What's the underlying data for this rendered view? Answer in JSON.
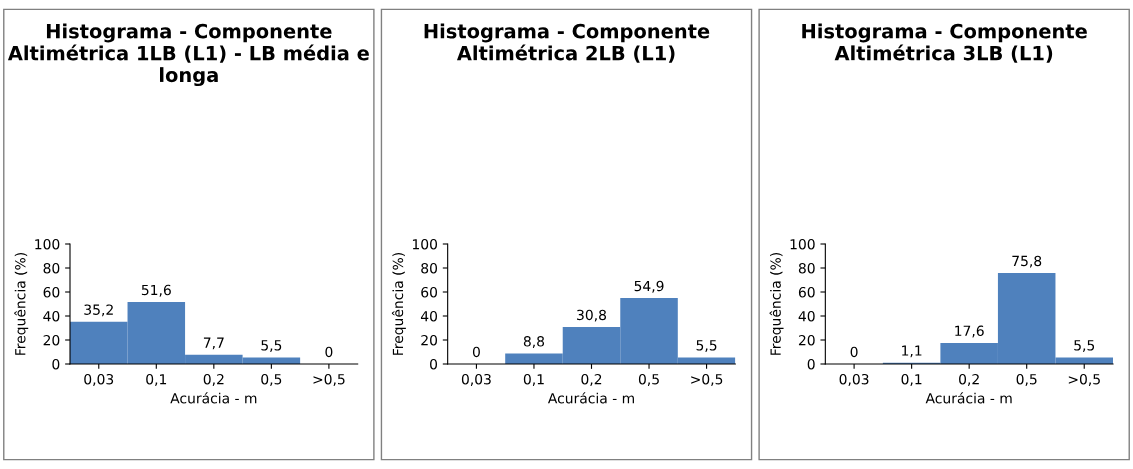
{
  "chart_data": [
    {
      "type": "bar",
      "title": "Histograma - Componente Altimétrica 1LB (L1) - LB média e longa",
      "xlabel": "Acurácia - m",
      "ylabel": "Frequência (%)",
      "categories": [
        "0,03",
        "0,1",
        "0,2",
        "0,5",
        ">0,5"
      ],
      "values": [
        35.2,
        51.6,
        7.7,
        5.5,
        0
      ],
      "value_labels": [
        "35,2",
        "51,6",
        "7,7",
        "5,5",
        "0"
      ],
      "color": "#4f81bd",
      "ylim": [
        0,
        100
      ],
      "yticks": [
        0,
        20,
        40,
        60,
        80,
        100
      ],
      "grid": false,
      "legend": false
    },
    {
      "type": "bar",
      "title": "Histograma - Componente Altimétrica 2LB (L1)",
      "xlabel": "Acurácia - m",
      "ylabel": "Frequência (%)",
      "categories": [
        "0,03",
        "0,1",
        "0,2",
        "0,5",
        ">0,5"
      ],
      "values": [
        0,
        8.8,
        30.8,
        54.9,
        5.5
      ],
      "value_labels": [
        "0",
        "8,8",
        "30,8",
        "54,9",
        "5,5"
      ],
      "color": "#4f81bd",
      "ylim": [
        0,
        100
      ],
      "yticks": [
        0,
        20,
        40,
        60,
        80,
        100
      ],
      "grid": false,
      "legend": false
    },
    {
      "type": "bar",
      "title": "Histograma - Componente Altimétrica 3LB (L1)",
      "xlabel": "Acurácia - m",
      "ylabel": "Frequência (%)",
      "categories": [
        "0,03",
        "0,1",
        "0,2",
        "0,5",
        ">0,5"
      ],
      "values": [
        0,
        1.1,
        17.6,
        75.8,
        5.5
      ],
      "value_labels": [
        "0",
        "1,1",
        "17,6",
        "75,8",
        "5,5"
      ],
      "color": "#4f81bd",
      "ylim": [
        0,
        100
      ],
      "yticks": [
        0,
        20,
        40,
        60,
        80,
        100
      ],
      "grid": false,
      "legend": false
    }
  ]
}
